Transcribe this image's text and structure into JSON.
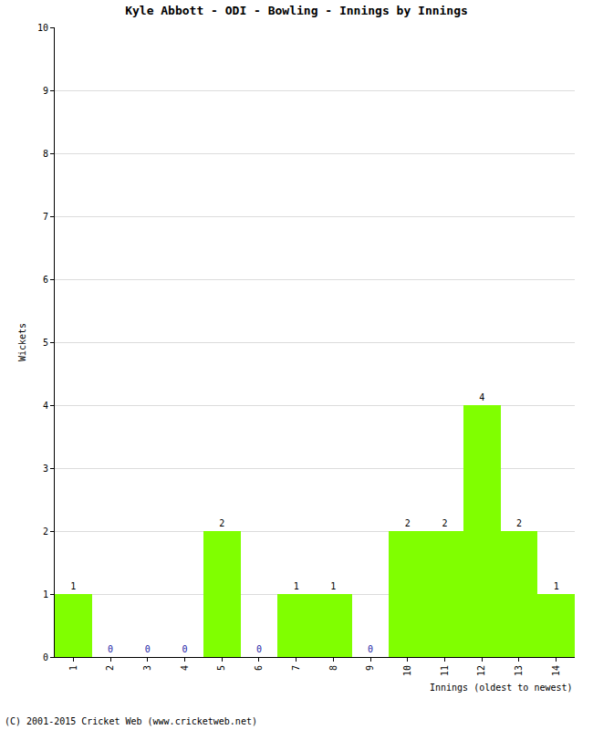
{
  "chart_data": {
    "type": "bar",
    "title": "Kyle Abbott - ODI - Bowling - Innings by Innings",
    "xlabel": "Innings (oldest to newest)",
    "ylabel": "Wickets",
    "categories": [
      "1",
      "2",
      "3",
      "4",
      "5",
      "6",
      "7",
      "8",
      "9",
      "10",
      "11",
      "12",
      "13",
      "14"
    ],
    "values": [
      1,
      0,
      0,
      0,
      2,
      0,
      1,
      1,
      0,
      2,
      2,
      4,
      2,
      1
    ],
    "color": "#80ff00",
    "ylim": [
      0,
      10
    ],
    "yticks": [
      0,
      1,
      2,
      3,
      4,
      5,
      6,
      7,
      8,
      9,
      10
    ],
    "grid": true,
    "data_labels": true,
    "annotations": [
      "(C) 2001-2015 Cricket Web (www.cricketweb.net)"
    ]
  }
}
